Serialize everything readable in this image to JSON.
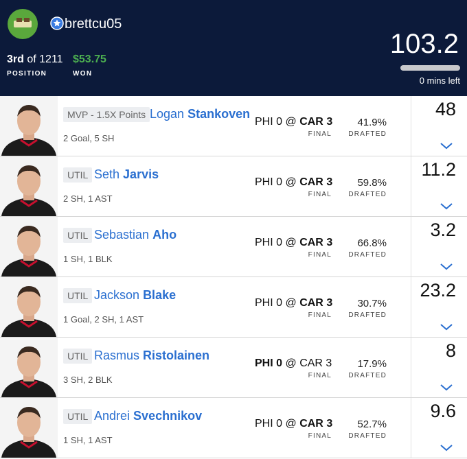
{
  "header": {
    "username": "brettcu05",
    "rank": "3rd",
    "rank_total": "of 1211",
    "rank_label": "POSITION",
    "winnings": "$53.75",
    "winnings_label": "WON",
    "score": "103.2",
    "time_left": "0 mins left"
  },
  "players": [
    {
      "slot": "MVP - 1.5X Points",
      "first_name": "Logan",
      "last_name": "Stankoven",
      "stats": "2 Goal, 5 SH",
      "away_team": "PHI",
      "away_score": "0",
      "at": "@",
      "home_team": "CAR",
      "home_score": "3",
      "bold": "home",
      "status": "FINAL",
      "drafted": "41.9%",
      "drafted_label": "DRAFTED",
      "points": "48"
    },
    {
      "slot": "UTIL",
      "first_name": "Seth",
      "last_name": "Jarvis",
      "stats": "2 SH, 1 AST",
      "away_team": "PHI",
      "away_score": "0",
      "at": "@",
      "home_team": "CAR",
      "home_score": "3",
      "bold": "home",
      "status": "FINAL",
      "drafted": "59.8%",
      "drafted_label": "DRAFTED",
      "points": "11.2"
    },
    {
      "slot": "UTIL",
      "first_name": "Sebastian",
      "last_name": "Aho",
      "stats": "1 SH, 1 BLK",
      "away_team": "PHI",
      "away_score": "0",
      "at": "@",
      "home_team": "CAR",
      "home_score": "3",
      "bold": "home",
      "status": "FINAL",
      "drafted": "66.8%",
      "drafted_label": "DRAFTED",
      "points": "3.2"
    },
    {
      "slot": "UTIL",
      "first_name": "Jackson",
      "last_name": "Blake",
      "stats": "1 Goal, 2 SH, 1 AST",
      "away_team": "PHI",
      "away_score": "0",
      "at": "@",
      "home_team": "CAR",
      "home_score": "3",
      "bold": "home",
      "status": "FINAL",
      "drafted": "30.7%",
      "drafted_label": "DRAFTED",
      "points": "23.2"
    },
    {
      "slot": "UTIL",
      "first_name": "Rasmus",
      "last_name": "Ristolainen",
      "stats": "3 SH, 2 BLK",
      "away_team": "PHI",
      "away_score": "0",
      "at": "@",
      "home_team": "CAR",
      "home_score": "3",
      "bold": "away",
      "status": "FINAL",
      "drafted": "17.9%",
      "drafted_label": "DRAFTED",
      "points": "8"
    },
    {
      "slot": "UTIL",
      "first_name": "Andrei",
      "last_name": "Svechnikov",
      "stats": "1 SH, 1 AST",
      "away_team": "PHI",
      "away_score": "0",
      "at": "@",
      "home_team": "CAR",
      "home_score": "3",
      "bold": "home",
      "status": "FINAL",
      "drafted": "52.7%",
      "drafted_label": "DRAFTED",
      "points": "9.6"
    }
  ]
}
